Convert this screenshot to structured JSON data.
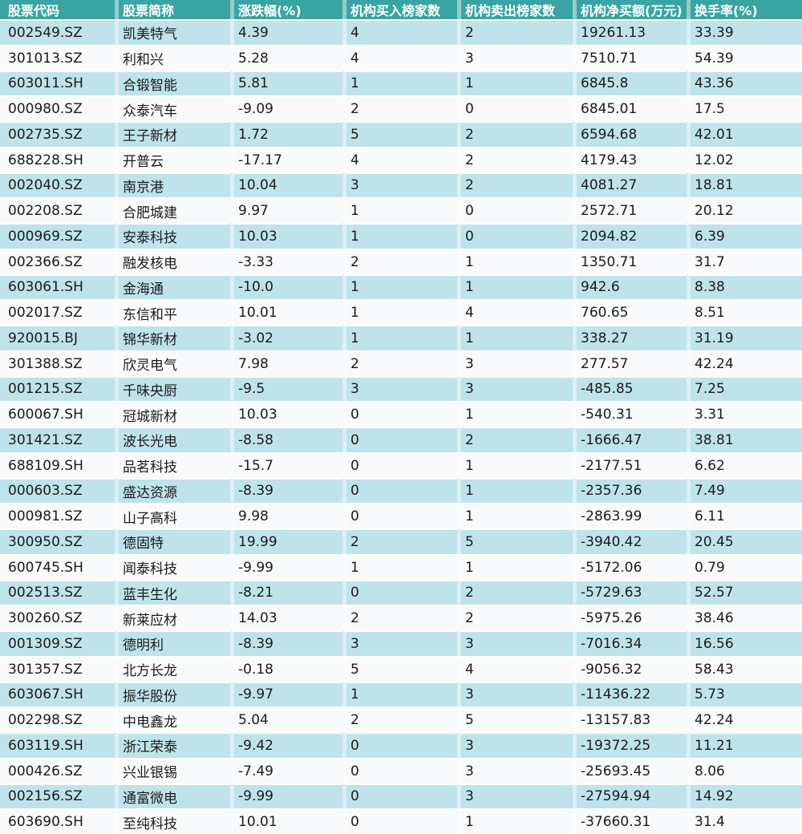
{
  "chart_data": {
    "type": "table",
    "columns": [
      "股票代码",
      "股票简称",
      "涨跌幅(%)",
      "机构买入榜家数",
      "机构卖出榜家数",
      "机构净买额(万元)",
      "换手率(%)"
    ],
    "rows": [
      [
        "002549.SZ",
        "凯美特气",
        "4.39",
        "4",
        "2",
        "19261.13",
        "33.39"
      ],
      [
        "301013.SZ",
        "利和兴",
        "5.28",
        "4",
        "3",
        "7510.71",
        "54.39"
      ],
      [
        "603011.SH",
        "合锻智能",
        "5.81",
        "1",
        "1",
        "6845.8",
        "43.36"
      ],
      [
        "000980.SZ",
        "众泰汽车",
        "-9.09",
        "2",
        "0",
        "6845.01",
        "17.5"
      ],
      [
        "002735.SZ",
        "王子新材",
        "1.72",
        "5",
        "2",
        "6594.68",
        "42.01"
      ],
      [
        "688228.SH",
        "开普云",
        "-17.17",
        "4",
        "2",
        "4179.43",
        "12.02"
      ],
      [
        "002040.SZ",
        "南京港",
        "10.04",
        "3",
        "2",
        "4081.27",
        "18.81"
      ],
      [
        "002208.SZ",
        "合肥城建",
        "9.97",
        "1",
        "0",
        "2572.71",
        "20.12"
      ],
      [
        "000969.SZ",
        "安泰科技",
        "10.03",
        "1",
        "0",
        "2094.82",
        "6.39"
      ],
      [
        "002366.SZ",
        "融发核电",
        "-3.33",
        "2",
        "1",
        "1350.71",
        "31.7"
      ],
      [
        "603061.SH",
        "金海通",
        "-10.0",
        "1",
        "1",
        "942.6",
        "8.38"
      ],
      [
        "002017.SZ",
        "东信和平",
        "10.01",
        "1",
        "4",
        "760.65",
        "8.51"
      ],
      [
        "920015.BJ",
        "锦华新材",
        "-3.02",
        "1",
        "1",
        "338.27",
        "31.19"
      ],
      [
        "301388.SZ",
        "欣灵电气",
        "7.98",
        "2",
        "3",
        "277.57",
        "42.24"
      ],
      [
        "001215.SZ",
        "千味央厨",
        "-9.5",
        "3",
        "3",
        "-485.85",
        "7.25"
      ],
      [
        "600067.SH",
        "冠城新材",
        "10.03",
        "0",
        "1",
        "-540.31",
        "3.31"
      ],
      [
        "301421.SZ",
        "波长光电",
        "-8.58",
        "0",
        "2",
        "-1666.47",
        "38.81"
      ],
      [
        "688109.SH",
        "品茗科技",
        "-15.7",
        "0",
        "1",
        "-2177.51",
        "6.62"
      ],
      [
        "000603.SZ",
        "盛达资源",
        "-8.39",
        "0",
        "1",
        "-2357.36",
        "7.49"
      ],
      [
        "000981.SZ",
        "山子高科",
        "9.98",
        "0",
        "1",
        "-2863.99",
        "6.11"
      ],
      [
        "300950.SZ",
        "德固特",
        "19.99",
        "2",
        "5",
        "-3940.42",
        "20.45"
      ],
      [
        "600745.SH",
        "闻泰科技",
        "-9.99",
        "1",
        "1",
        "-5172.06",
        "0.79"
      ],
      [
        "002513.SZ",
        "蓝丰生化",
        "-8.21",
        "0",
        "2",
        "-5729.63",
        "52.57"
      ],
      [
        "300260.SZ",
        "新莱应材",
        "14.03",
        "2",
        "2",
        "-5975.26",
        "38.46"
      ],
      [
        "001309.SZ",
        "德明利",
        "-8.39",
        "3",
        "3",
        "-7016.34",
        "16.56"
      ],
      [
        "301357.SZ",
        "北方长龙",
        "-0.18",
        "5",
        "4",
        "-9056.32",
        "58.43"
      ],
      [
        "603067.SH",
        "振华股份",
        "-9.97",
        "1",
        "3",
        "-11436.22",
        "5.73"
      ],
      [
        "002298.SZ",
        "中电鑫龙",
        "5.04",
        "2",
        "5",
        "-13157.83",
        "42.24"
      ],
      [
        "603119.SH",
        "浙江荣泰",
        "-9.42",
        "0",
        "3",
        "-19372.25",
        "11.21"
      ],
      [
        "000426.SZ",
        "兴业银锡",
        "-7.49",
        "0",
        "3",
        "-25693.45",
        "8.06"
      ],
      [
        "002156.SZ",
        "通富微电",
        "-9.99",
        "0",
        "3",
        "-27594.94",
        "14.92"
      ],
      [
        "603690.SH",
        "至纯科技",
        "10.01",
        "0",
        "1",
        "-37660.31",
        "31.4"
      ]
    ]
  },
  "colors": {
    "header_bg": "#3aa4a4",
    "header_text": "#ffffff",
    "row_alt_bg": "#bee3eb",
    "row_bg": "#f8fafb",
    "cell_text": "#1b1b1b",
    "grid_line": "#ffffff"
  }
}
